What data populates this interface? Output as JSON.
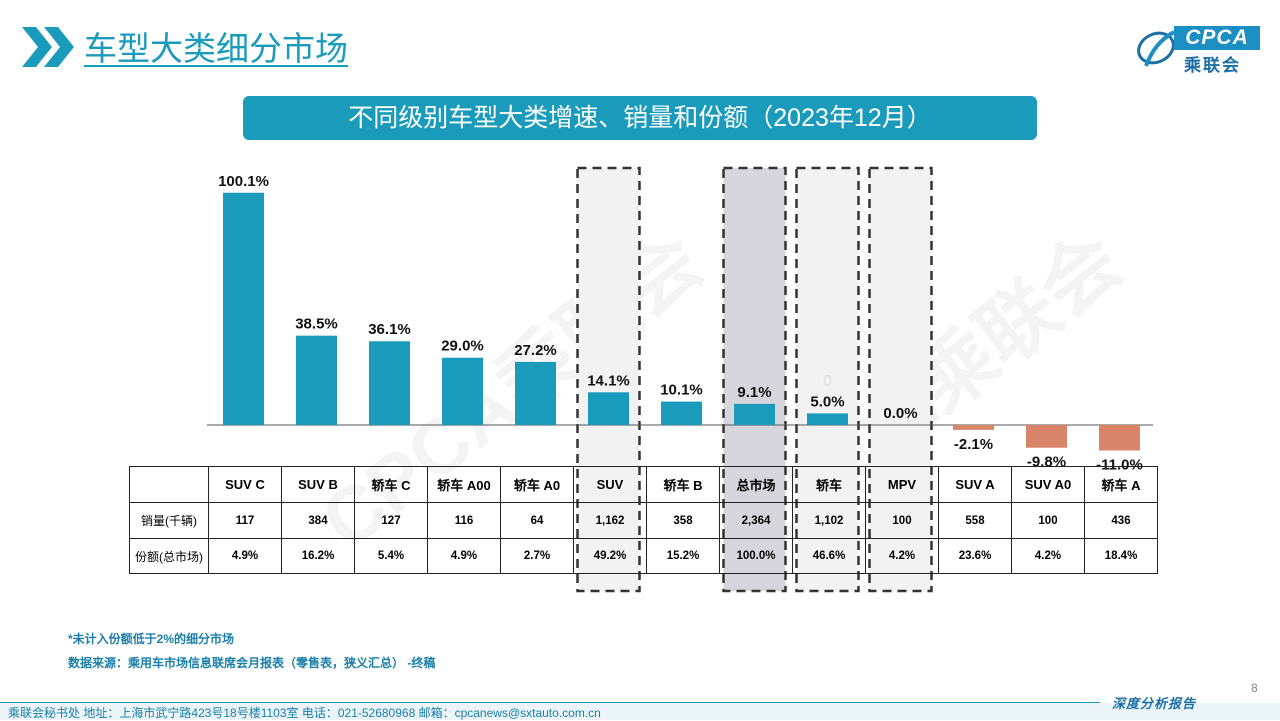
{
  "header": {
    "title": "车型大类细分市场",
    "logo_text": "CPCA",
    "logo_cn": "乘联会",
    "banner": "不同级别车型大类增速、销量和份额（2023年12月）"
  },
  "watermark": "CPCA乘联会",
  "chart_data": {
    "type": "bar",
    "title": "不同级别车型大类增速、销量和份额（2023年12月）",
    "categories": [
      "SUV C",
      "SUV B",
      "轿车 C",
      "轿车 A00",
      "轿车 A0",
      "SUV",
      "轿车 B",
      "总市场",
      "轿车",
      "MPV",
      "SUV A",
      "SUV A0",
      "轿车 A"
    ],
    "values": [
      100.1,
      38.5,
      36.1,
      29.0,
      27.2,
      14.1,
      10.1,
      9.1,
      5.0,
      0.0,
      -2.1,
      -9.8,
      -11.0
    ],
    "labels": [
      "100.1%",
      "38.5%",
      "36.1%",
      "29.0%",
      "27.2%",
      "14.1%",
      "10.1%",
      "9.1%",
      "5.0%",
      "0.0%",
      "-2.1%",
      "-9.8%",
      "-11.0%"
    ],
    "unit": "%",
    "colors": {
      "positive": "#1b9bbc",
      "negative": "#d9856a"
    },
    "highlighted": [
      "SUV",
      "总市场",
      "轿车",
      "MPV"
    ],
    "stray_label": "0",
    "grid": false
  },
  "table": {
    "header_label": "",
    "rows": [
      {
        "label": "销量(千辆)",
        "values": [
          "117",
          "384",
          "127",
          "116",
          "64",
          "1,162",
          "358",
          "2,364",
          "1,102",
          "100",
          "558",
          "100",
          "436"
        ]
      },
      {
        "label": "份额(总市场)",
        "values": [
          "4.9%",
          "16.2%",
          "5.4%",
          "4.9%",
          "2.7%",
          "49.2%",
          "15.2%",
          "100.0%",
          "46.6%",
          "4.2%",
          "23.6%",
          "4.2%",
          "18.4%"
        ]
      }
    ]
  },
  "notes": {
    "note1": "*未计入份额低于2%的细分市场",
    "note2": "数据来源：乘用车市场信息联席会月报表（零售表，狭义汇总）  -终稿"
  },
  "footer": {
    "page_number": "8",
    "tag": "深度分析报告",
    "text": "乘联会秘书处    地址：上海市武宁路423号18号楼1103室    电话：021-52680968    邮箱：cpcanews@sxtauto.com.cn"
  }
}
